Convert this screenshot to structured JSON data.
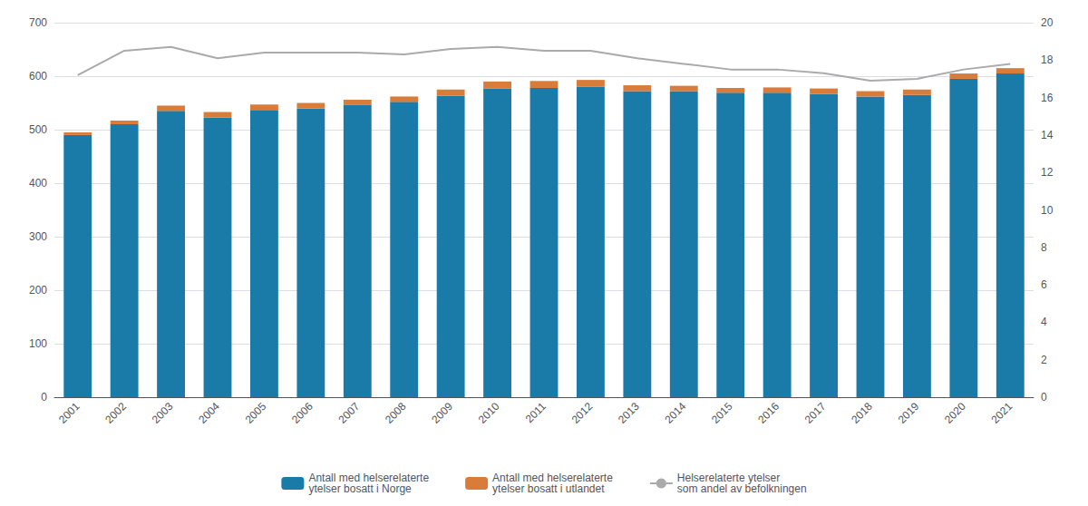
{
  "chart_data": {
    "type": "bar",
    "categories": [
      "2001",
      "2002",
      "2003",
      "2004",
      "2005",
      "2006",
      "2007",
      "2008",
      "2009",
      "2010",
      "2011",
      "2012",
      "2013",
      "2014",
      "2015",
      "2016",
      "2017",
      "2018",
      "2019",
      "2020",
      "2021"
    ],
    "series": [
      {
        "name": "Antall med helserelaterte\nytelser bosatt i Norge",
        "type": "bar",
        "color": "#1a7aa8",
        "values": [
          490,
          510,
          535,
          523,
          537,
          540,
          546,
          552,
          563,
          577,
          578,
          580,
          572,
          572,
          569,
          569,
          567,
          562,
          565,
          595,
          605
        ]
      },
      {
        "name": "Antall med helserelaterte\nytelser bosatt i utlandet",
        "type": "bar",
        "color": "#d97c3a",
        "values": [
          5,
          7,
          10,
          10,
          10,
          10,
          10,
          10,
          12,
          13,
          13,
          13,
          11,
          10,
          9,
          10,
          10,
          10,
          10,
          10,
          10
        ]
      },
      {
        "name": "Helserelaterte ytelser\nsom andel av befolkningen",
        "type": "line",
        "color": "#aaaaaa",
        "axis": "y2",
        "values": [
          17.2,
          18.5,
          18.7,
          18.1,
          18.4,
          18.4,
          18.4,
          18.3,
          18.6,
          18.7,
          18.5,
          18.5,
          18.1,
          17.8,
          17.5,
          17.5,
          17.3,
          16.9,
          17.0,
          17.5,
          17.8
        ]
      }
    ],
    "stacked": true,
    "ylim": [
      0,
      700
    ],
    "yticks": [
      0,
      100,
      200,
      300,
      400,
      500,
      600,
      700
    ],
    "y2lim": [
      0,
      20
    ],
    "y2ticks": [
      0,
      2,
      4,
      6,
      8,
      10,
      12,
      14,
      16,
      18,
      20
    ],
    "grid": true,
    "legend": "bottom"
  }
}
